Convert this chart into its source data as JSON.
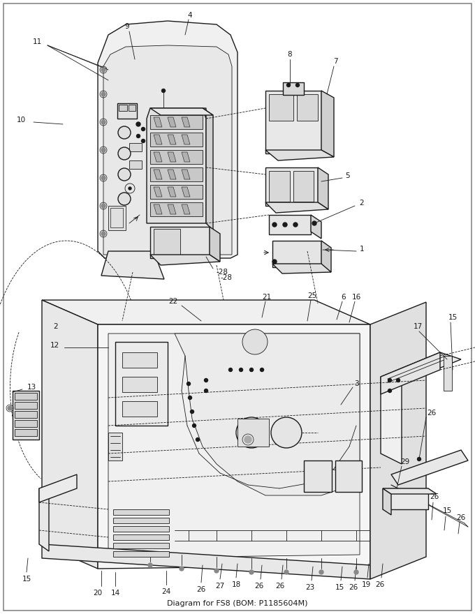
{
  "title": "Diagram for FS8 (BOM: P1185604M)",
  "bg_color": "#ffffff",
  "lc": "#1a1a1a",
  "lw_main": 1.0,
  "lw_thin": 0.6,
  "fs_label": 7.5,
  "fig_w": 6.8,
  "fig_h": 8.8,
  "dpi": 100
}
